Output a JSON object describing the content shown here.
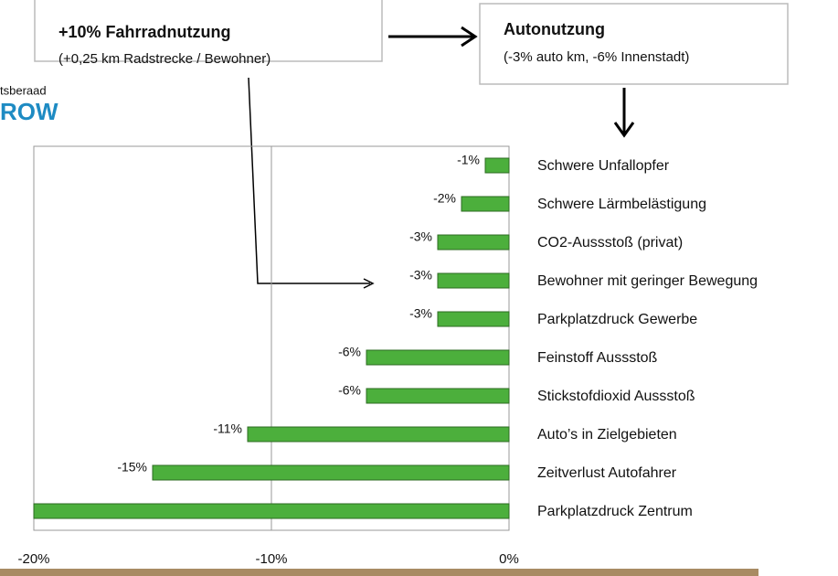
{
  "chart_data": {
    "type": "bar",
    "orientation": "horizontal",
    "boxes": [
      {
        "title": "+10% Fahrradnutzung",
        "subtitle": "(+0,25 km Radstrecke / Bewohner)"
      },
      {
        "title": "Autonutzung",
        "subtitle": "(-3% auto km, -6% Innenstadt)"
      }
    ],
    "logo": [
      "tsberaad",
      "ROW"
    ],
    "categories": [
      "Schwere Unfallopfer",
      "Schwere Lärmbelästigung",
      "CO2-Aussstoß (privat)",
      "Bewohner mit geringer Bewegung",
      "Parkplatzdruck Gewerbe",
      "Feinstoff Aussstoß",
      "Stickstofdioxid Aussstoß",
      "Auto’s in Zielgebieten",
      "Zeitverlust Autofahrer",
      "Parkplatzdruck Zentrum"
    ],
    "values": [
      -1,
      -2,
      -3,
      -3,
      -3,
      -6,
      -6,
      -11,
      -15,
      -20
    ],
    "value_labels": [
      "-1%",
      "-2%",
      "-3%",
      "-3%",
      "-3%",
      "-6%",
      "-6%",
      "-11%",
      "-15%",
      null
    ],
    "color": "#4caf3c",
    "xlim": [
      -20,
      0
    ],
    "xticks": [
      {
        "value": -20,
        "label": "-20%"
      },
      {
        "value": -10,
        "label": "-10%"
      },
      {
        "value": 0,
        "label": "0%"
      }
    ],
    "grid": true
  }
}
